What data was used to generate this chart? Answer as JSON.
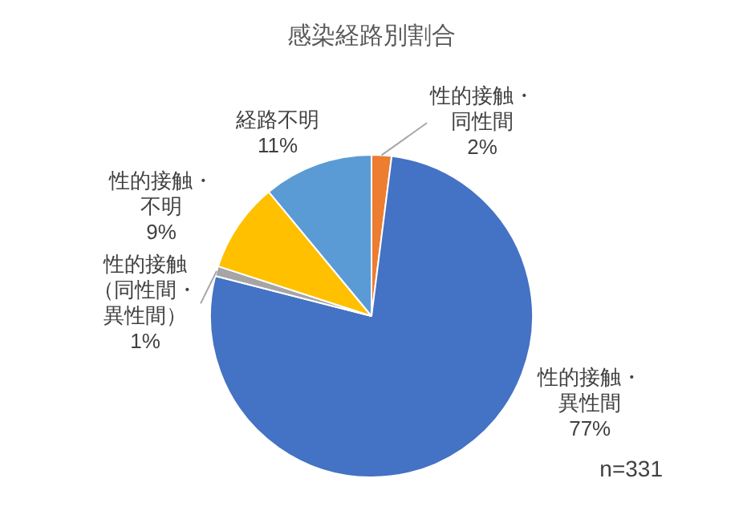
{
  "chart_data": {
    "type": "pie",
    "title": "感染経路別割合",
    "categories": [
      "性的接触・同性間",
      "性的接触・異性間",
      "性的接触（同性間・異性間）",
      "性的接触・不明",
      "経路不明"
    ],
    "values": [
      2,
      77,
      1,
      9,
      11
    ],
    "value_labels": [
      "2%",
      "77%",
      "1%",
      "9%",
      "11%"
    ],
    "colors": [
      "#ed7d31",
      "#4472c4",
      "#a5a5a5",
      "#ffc000",
      "#5b9bd5"
    ],
    "legend": false,
    "annotations": [
      "n=331"
    ]
  }
}
